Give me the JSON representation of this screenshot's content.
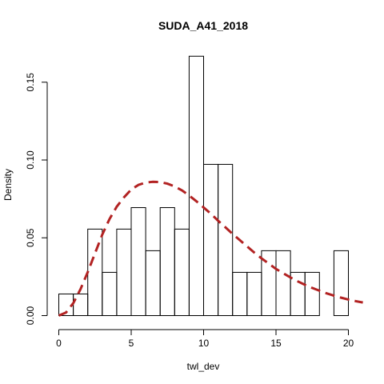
{
  "chart_data": {
    "type": "histogram",
    "title": "SUDA_A41_2018",
    "xlabel": "twl_dev",
    "ylabel": "Density",
    "xlim": [
      0,
      21
    ],
    "ylim": [
      0,
      0.175
    ],
    "x_ticks": [
      0,
      5,
      10,
      15,
      20
    ],
    "x_tick_labels": [
      "0",
      "5",
      "10",
      "15",
      "20"
    ],
    "y_ticks": [
      0.0,
      0.05,
      0.1,
      0.15
    ],
    "y_tick_labels": [
      "0.00",
      "0.05",
      "0.10",
      "0.15"
    ],
    "bin_width": 1,
    "bins": [
      {
        "start": 0,
        "end": 1,
        "density": 0.0139
      },
      {
        "start": 1,
        "end": 2,
        "density": 0.0139
      },
      {
        "start": 2,
        "end": 3,
        "density": 0.0556
      },
      {
        "start": 3,
        "end": 4,
        "density": 0.0278
      },
      {
        "start": 4,
        "end": 5,
        "density": 0.0556
      },
      {
        "start": 5,
        "end": 6,
        "density": 0.0694
      },
      {
        "start": 6,
        "end": 7,
        "density": 0.0417
      },
      {
        "start": 7,
        "end": 8,
        "density": 0.0694
      },
      {
        "start": 8,
        "end": 9,
        "density": 0.0556
      },
      {
        "start": 9,
        "end": 10,
        "density": 0.1667
      },
      {
        "start": 10,
        "end": 11,
        "density": 0.0972
      },
      {
        "start": 11,
        "end": 12,
        "density": 0.0972
      },
      {
        "start": 12,
        "end": 13,
        "density": 0.0278
      },
      {
        "start": 13,
        "end": 14,
        "density": 0.0278
      },
      {
        "start": 14,
        "end": 15,
        "density": 0.0417
      },
      {
        "start": 15,
        "end": 16,
        "density": 0.0417
      },
      {
        "start": 16,
        "end": 17,
        "density": 0.0278
      },
      {
        "start": 17,
        "end": 18,
        "density": 0.0278
      },
      {
        "start": 19,
        "end": 20,
        "density": 0.0417
      }
    ],
    "density_curve": {
      "color": "#b22222",
      "style": "dashed",
      "points": [
        [
          0,
          0.0
        ],
        [
          0.5,
          0.002
        ],
        [
          1,
          0.008
        ],
        [
          1.5,
          0.017
        ],
        [
          2,
          0.028
        ],
        [
          2.5,
          0.04
        ],
        [
          3,
          0.052
        ],
        [
          3.5,
          0.062
        ],
        [
          4,
          0.07
        ],
        [
          4.5,
          0.076
        ],
        [
          5,
          0.081
        ],
        [
          5.5,
          0.084
        ],
        [
          6,
          0.0855
        ],
        [
          6.5,
          0.086
        ],
        [
          7,
          0.0858
        ],
        [
          7.5,
          0.0848
        ],
        [
          8,
          0.083
        ],
        [
          8.5,
          0.0805
        ],
        [
          9,
          0.0772
        ],
        [
          9.5,
          0.0735
        ],
        [
          10,
          0.0695
        ],
        [
          10.5,
          0.0655
        ],
        [
          11,
          0.061
        ],
        [
          11.5,
          0.0568
        ],
        [
          12,
          0.0525
        ],
        [
          12.5,
          0.0485
        ],
        [
          13,
          0.0445
        ],
        [
          13.5,
          0.0405
        ],
        [
          14,
          0.0368
        ],
        [
          14.5,
          0.0334
        ],
        [
          15,
          0.03
        ],
        [
          15.5,
          0.0272
        ],
        [
          16,
          0.0245
        ],
        [
          16.5,
          0.022
        ],
        [
          17,
          0.0198
        ],
        [
          17.5,
          0.0178
        ],
        [
          18,
          0.016
        ],
        [
          18.5,
          0.0143
        ],
        [
          19,
          0.0128
        ],
        [
          19.5,
          0.0115
        ],
        [
          20,
          0.0103
        ],
        [
          20.5,
          0.0093
        ],
        [
          21,
          0.0084
        ]
      ]
    }
  }
}
